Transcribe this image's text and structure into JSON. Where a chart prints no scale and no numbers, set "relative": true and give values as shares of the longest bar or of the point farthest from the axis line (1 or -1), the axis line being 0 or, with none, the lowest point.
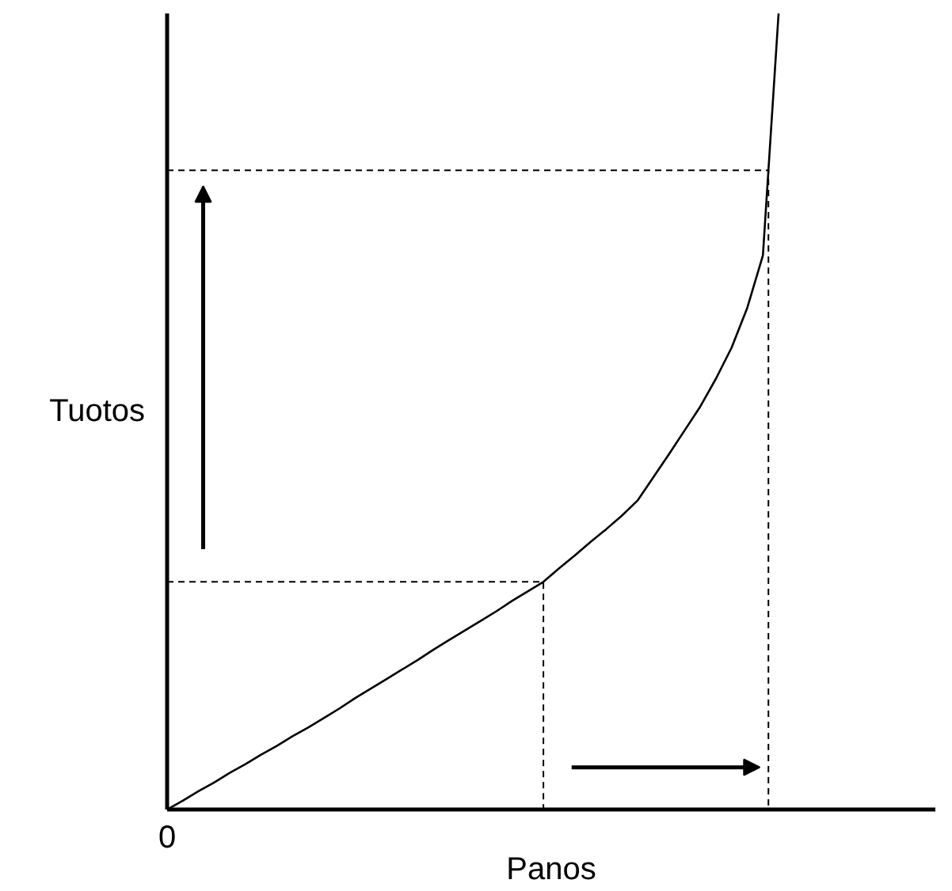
{
  "chart_data": {
    "type": "line",
    "relative": true,
    "xlabel": "Panos",
    "ylabel": "Tuotos",
    "categories": [
      null,
      null,
      null,
      null,
      null,
      null,
      null,
      null,
      null,
      null,
      null,
      null,
      null,
      null,
      null,
      null,
      null,
      null,
      null,
      null,
      null,
      null,
      null,
      null,
      null,
      null,
      null,
      null,
      null,
      null,
      null,
      null,
      null,
      null,
      null,
      null,
      null,
      null,
      null,
      null,
      null,
      null,
      null,
      null,
      null,
      null,
      null,
      null,
      null,
      null
    ],
    "series": [
      {
        "color": "#000000",
        "values": [
          0,
          0.011,
          0.023,
          0.034,
          0.046,
          0.057,
          0.069,
          0.08,
          0.092,
          0.103,
          0.115,
          0.127,
          0.14,
          0.152,
          0.164,
          0.176,
          0.188,
          0.201,
          0.213,
          0.225,
          0.237,
          0.249,
          0.262,
          0.274,
          0.286,
          0.303,
          0.319,
          0.336,
          0.352,
          0.369,
          0.388,
          0.417,
          0.446,
          0.476,
          0.506,
          0.541,
          0.58,
          0.63,
          0.696,
          1,
          null,
          null,
          null,
          null,
          null,
          null,
          null,
          null,
          null,
          null
        ]
      }
    ],
    "ref_lines": [
      {
        "axis": "y",
        "value": 0.286,
        "line_style": "dashed",
        "color": "#000000"
      },
      {
        "axis": "y",
        "value": 0.803,
        "line_style": "dashed",
        "color": "#000000"
      }
    ],
    "annotations": [
      "0"
    ],
    "grid": false
  }
}
